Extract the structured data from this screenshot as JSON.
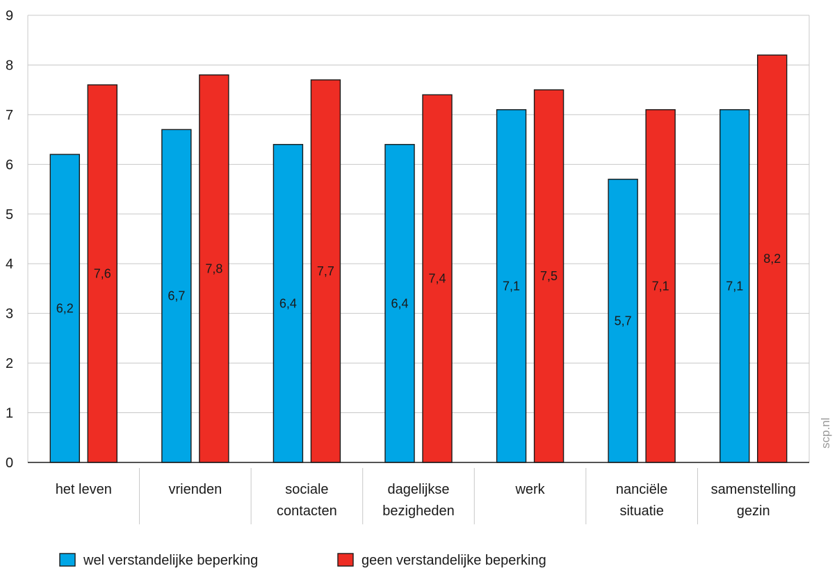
{
  "chart_data": {
    "type": "bar",
    "categories": [
      [
        "het leven"
      ],
      [
        "vrienden"
      ],
      [
        "sociale",
        "contacten"
      ],
      [
        "dagelijkse",
        "bezigheden"
      ],
      [
        "werk"
      ],
      [
        "nanciële",
        "situatie"
      ],
      [
        "samenstelling",
        "gezin"
      ]
    ],
    "series": [
      {
        "name": "wel verstandelijke beperking",
        "color": "#00a6e6",
        "values": [
          6.2,
          6.7,
          6.4,
          6.4,
          7.1,
          5.7,
          7.1
        ],
        "labels": [
          "6,2",
          "6,7",
          "6,4",
          "6,4",
          "7,1",
          "5,7",
          "7,1"
        ]
      },
      {
        "name": "geen verstandelijke beperking",
        "color": "#ee2d24",
        "values": [
          7.6,
          7.8,
          7.7,
          7.4,
          7.5,
          7.1,
          8.2
        ],
        "labels": [
          "7,6",
          "7,8",
          "7,7",
          "7,4",
          "7,5",
          "7,1",
          "8,2"
        ]
      }
    ],
    "ylim": [
      0,
      9
    ],
    "yticks": [
      "0",
      "1",
      "2",
      "3",
      "4",
      "5",
      "6",
      "7",
      "8",
      "9"
    ],
    "grid": true,
    "legend_position": "bottom-left",
    "title": "",
    "xlabel": "",
    "ylabel": ""
  },
  "watermark": "scp.nl"
}
